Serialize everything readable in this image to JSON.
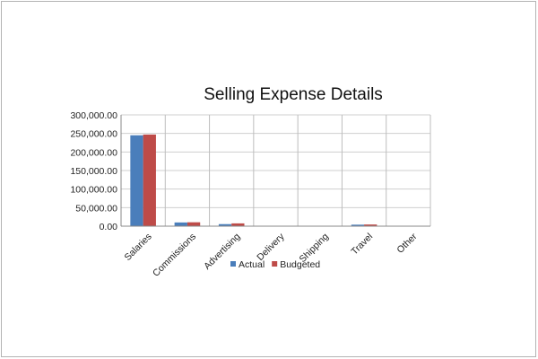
{
  "chart_data": {
    "type": "bar",
    "title": "Selling Expense Details",
    "xlabel": "",
    "ylabel": "",
    "ylim": [
      0,
      300000
    ],
    "yticks": [
      0,
      50000,
      100000,
      150000,
      200000,
      250000,
      300000
    ],
    "ytick_labels": [
      "0.00",
      "50,000.00",
      "100,000.00",
      "150,000.00",
      "200,000.00",
      "250,000.00",
      "300,000.00"
    ],
    "categories": [
      "Salaries",
      "Commissions",
      "Advertising",
      "Delivery",
      "Shipping",
      "Travel",
      "Other"
    ],
    "series": [
      {
        "name": "Actual",
        "color": "#4a7ebb",
        "values": [
          245000,
          10000,
          5500,
          0,
          0,
          4000,
          0
        ]
      },
      {
        "name": "Budgeted",
        "color": "#be4b48",
        "values": [
          247000,
          10500,
          7500,
          0,
          0,
          4500,
          0
        ]
      }
    ],
    "grid": true,
    "legend_position": "bottom"
  }
}
